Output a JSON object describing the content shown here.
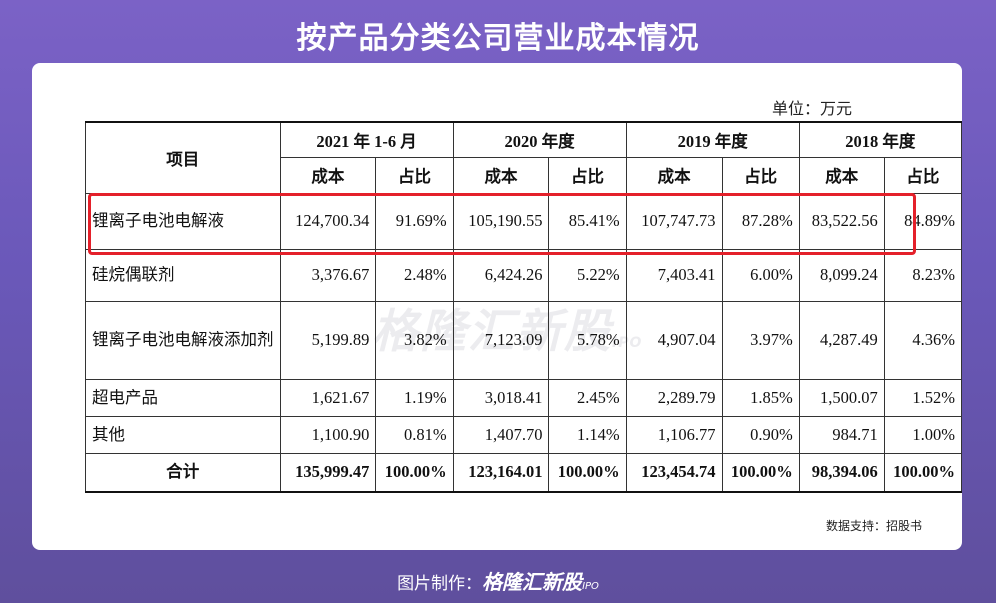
{
  "title": "按产品分类公司营业成本情况",
  "unit": "单位：万元",
  "watermark": {
    "brand": "格隆汇新股",
    "suffix": "IPO"
  },
  "highlight_color": "#e4202a",
  "table": {
    "item_header": "项目",
    "periods": [
      "2021 年 1-6 月",
      "2020 年度",
      "2019 年度",
      "2018 年度"
    ],
    "subheaders": [
      "成本",
      "占比"
    ],
    "rows": [
      {
        "name": "锂离子电池电解液",
        "cells": [
          "124,700.34",
          "91.69%",
          "105,190.55",
          "85.41%",
          "107,747.73",
          "87.28%",
          "83,522.56",
          "84.89%"
        ]
      },
      {
        "name": "硅烷偶联剂",
        "cells": [
          "3,376.67",
          "2.48%",
          "6,424.26",
          "5.22%",
          "7,403.41",
          "6.00%",
          "8,099.24",
          "8.23%"
        ]
      },
      {
        "name": "锂离子电池电解液添加剂",
        "cells": [
          "5,199.89",
          "3.82%",
          "7,123.09",
          "5.78%",
          "4,907.04",
          "3.97%",
          "4,287.49",
          "4.36%"
        ]
      },
      {
        "name": "超电产品",
        "cells": [
          "1,621.67",
          "1.19%",
          "3,018.41",
          "2.45%",
          "2,289.79",
          "1.85%",
          "1,500.07",
          "1.52%"
        ]
      },
      {
        "name": "其他",
        "cells": [
          "1,100.90",
          "0.81%",
          "1,407.70",
          "1.14%",
          "1,106.77",
          "0.90%",
          "984.71",
          "1.00%"
        ]
      },
      {
        "name": "合计",
        "cells": [
          "135,999.47",
          "100.00%",
          "123,164.01",
          "100.00%",
          "123,454.74",
          "100.00%",
          "98,394.06",
          "100.00%"
        ]
      }
    ]
  },
  "source": "数据支持：招股书",
  "footer": {
    "label": "图片制作：",
    "brand": "格隆汇新股",
    "suffix": "IPO"
  }
}
